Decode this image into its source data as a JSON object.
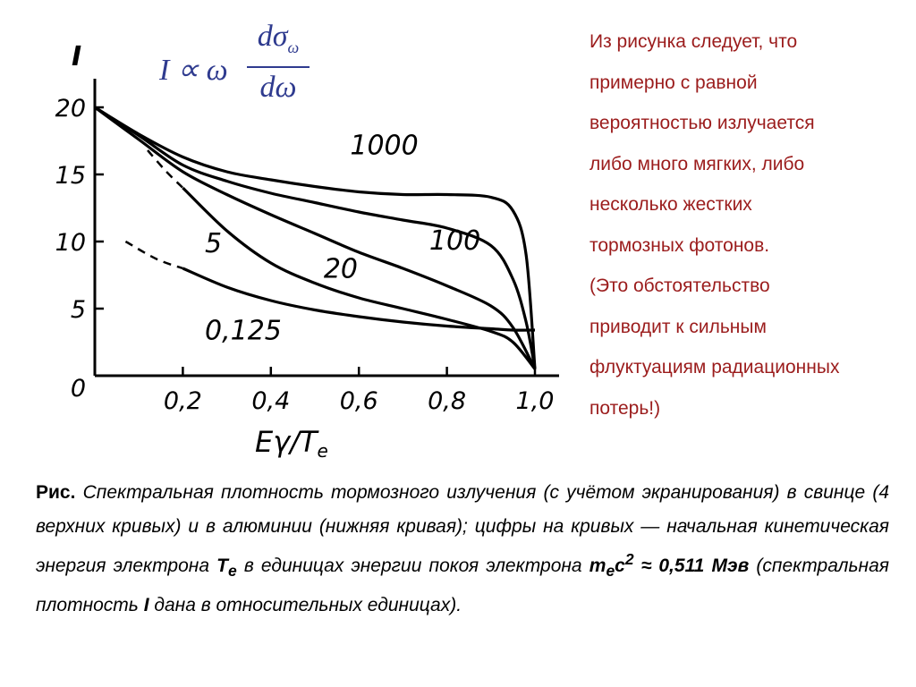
{
  "formula": {
    "lhs": "I ∝ ω",
    "numerator": "dσ",
    "numerator_sub": "ω",
    "denominator": "dω"
  },
  "note": {
    "lines": [
      "Из рисунка следует, что",
      "примерно с равной",
      "вероятностью излучается",
      "либо много мягких, либо",
      "несколько жестких",
      "тормозных фотонов.",
      "(Это обстоятельство",
      "приводит к сильным",
      "флуктуациям радиационных",
      "потерь!)"
    ]
  },
  "caption": {
    "label": "Рис.",
    "text1": " Спектральная плотность тормозного излучения (с учётом экранирования) в свинце (4 верхних кривых) и в алюминии (нижняя кривая); цифры на кривых — начальная кинетическая энергия электрона ",
    "te": "T",
    "te_sub": "e",
    "text2": " в единицах энергии покоя электрона ",
    "mec": "m",
    "mec_sub": "e",
    "mec_c": "c",
    "mec_sup": "2",
    "approx": " ≈ 0,511 Мэв",
    "text3": " (спектральная плотность ",
    "I": "I",
    "text4": " дана в относительных единицах)."
  },
  "chart_data": {
    "type": "line",
    "ylabel": "I",
    "xlabel_main": "E",
    "xlabel_gamma": "γ",
    "xlabel_slash": "/T",
    "xlabel_sub": "e",
    "xlim": [
      0,
      1.05
    ],
    "ylim": [
      0,
      22
    ],
    "x_ticks": [
      "0,2",
      "0,4",
      "0,6",
      "0,8",
      "1,0"
    ],
    "x_tick_values": [
      0.2,
      0.4,
      0.6,
      0.8,
      1.0
    ],
    "y_ticks": [
      "0",
      "5",
      "10",
      "15",
      "20"
    ],
    "y_tick_values": [
      0,
      5,
      10,
      15,
      20
    ],
    "series": [
      {
        "name": "1000",
        "x": [
          0,
          0.1,
          0.2,
          0.3,
          0.4,
          0.5,
          0.6,
          0.7,
          0.8,
          0.9,
          0.95,
          0.98,
          1.0
        ],
        "y": [
          20,
          18,
          16.3,
          15.2,
          14.6,
          14.1,
          13.7,
          13.5,
          13.5,
          13.3,
          12.3,
          9,
          0.5
        ]
      },
      {
        "name": "100",
        "x": [
          0,
          0.1,
          0.2,
          0.3,
          0.4,
          0.5,
          0.6,
          0.7,
          0.8,
          0.9,
          0.95,
          0.98,
          1.0
        ],
        "y": [
          20,
          17.9,
          15.7,
          14.5,
          13.6,
          12.9,
          12.2,
          11.6,
          11,
          9.7,
          7.2,
          4,
          0.5
        ]
      },
      {
        "name": "20",
        "x": [
          0,
          0.1,
          0.2,
          0.3,
          0.4,
          0.5,
          0.6,
          0.7,
          0.8,
          0.9,
          0.95,
          1.0
        ],
        "y": [
          20,
          17.6,
          15.2,
          13.5,
          12,
          10.6,
          9.2,
          8,
          6.7,
          5.2,
          3.6,
          0.5
        ]
      },
      {
        "name": "5",
        "x": [
          0.2,
          0.3,
          0.4,
          0.5,
          0.6,
          0.7,
          0.8,
          0.9,
          0.95,
          1.0
        ],
        "y": [
          14,
          10.8,
          8.4,
          6.9,
          5.8,
          5.0,
          4.2,
          3.3,
          2.5,
          0.5
        ]
      },
      {
        "name": "0,125",
        "x": [
          0.2,
          0.3,
          0.4,
          0.5,
          0.6,
          0.7,
          0.8,
          0.9,
          0.95,
          1.0
        ],
        "y": [
          8,
          6.6,
          5.6,
          4.9,
          4.4,
          4.0,
          3.7,
          3.5,
          3.4,
          3.4
        ]
      }
    ],
    "dashed_extensions": [
      {
        "x": [
          0.12,
          0.16,
          0.2
        ],
        "y": [
          16.8,
          15.3,
          14
        ]
      },
      {
        "x": [
          0.07,
          0.14,
          0.2
        ],
        "y": [
          10,
          8.7,
          8
        ]
      }
    ],
    "curve_labels": [
      {
        "text": "1000",
        "x": 0.58,
        "y": 16.5
      },
      {
        "text": "100",
        "x": 0.76,
        "y": 9.4
      },
      {
        "text": "20",
        "x": 0.52,
        "y": 7.3
      },
      {
        "text": "5",
        "x": 0.25,
        "y": 9.2
      },
      {
        "text": "0,125",
        "x": 0.25,
        "y": 2.7
      }
    ]
  }
}
